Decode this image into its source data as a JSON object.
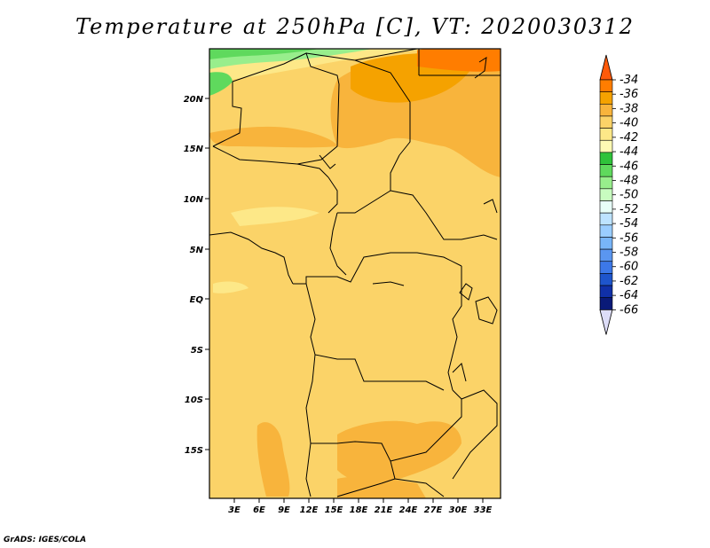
{
  "title": "Temperature at 250hPa [C], VT: 2020030312",
  "credit": "GrADS: IGES/COLA",
  "map": {
    "lon_range": [
      0,
      35
    ],
    "lat_range": [
      -20,
      25
    ],
    "lon_ticks": [
      "3E",
      "6E",
      "9E",
      "12E",
      "15E",
      "18E",
      "21E",
      "24E",
      "27E",
      "30E",
      "33E"
    ],
    "lat_ticks": [
      "20N",
      "15N",
      "10N",
      "5N",
      "EQ",
      "5S",
      "10S",
      "15S"
    ]
  },
  "colorbar": {
    "labels": [
      "-34",
      "-36",
      "-38",
      "-40",
      "-42",
      "-44",
      "-46",
      "-48",
      "-50",
      "-52",
      "-54",
      "-56",
      "-58",
      "-60",
      "-62",
      "-64",
      "-66"
    ],
    "colors": [
      "#ff5a0a",
      "#ff7d00",
      "#f5a200",
      "#f8b43c",
      "#fbd368",
      "#fde888",
      "#fefab4",
      "#2fc23a",
      "#5fd95d",
      "#98ee8c",
      "#c8fcc0",
      "#e8fff8",
      "#bde3ff",
      "#9acdff",
      "#78b5f8",
      "#5a96f0",
      "#3c78e8",
      "#1e55cc",
      "#1030a8",
      "#0a1a78",
      "#ddddf8"
    ]
  }
}
